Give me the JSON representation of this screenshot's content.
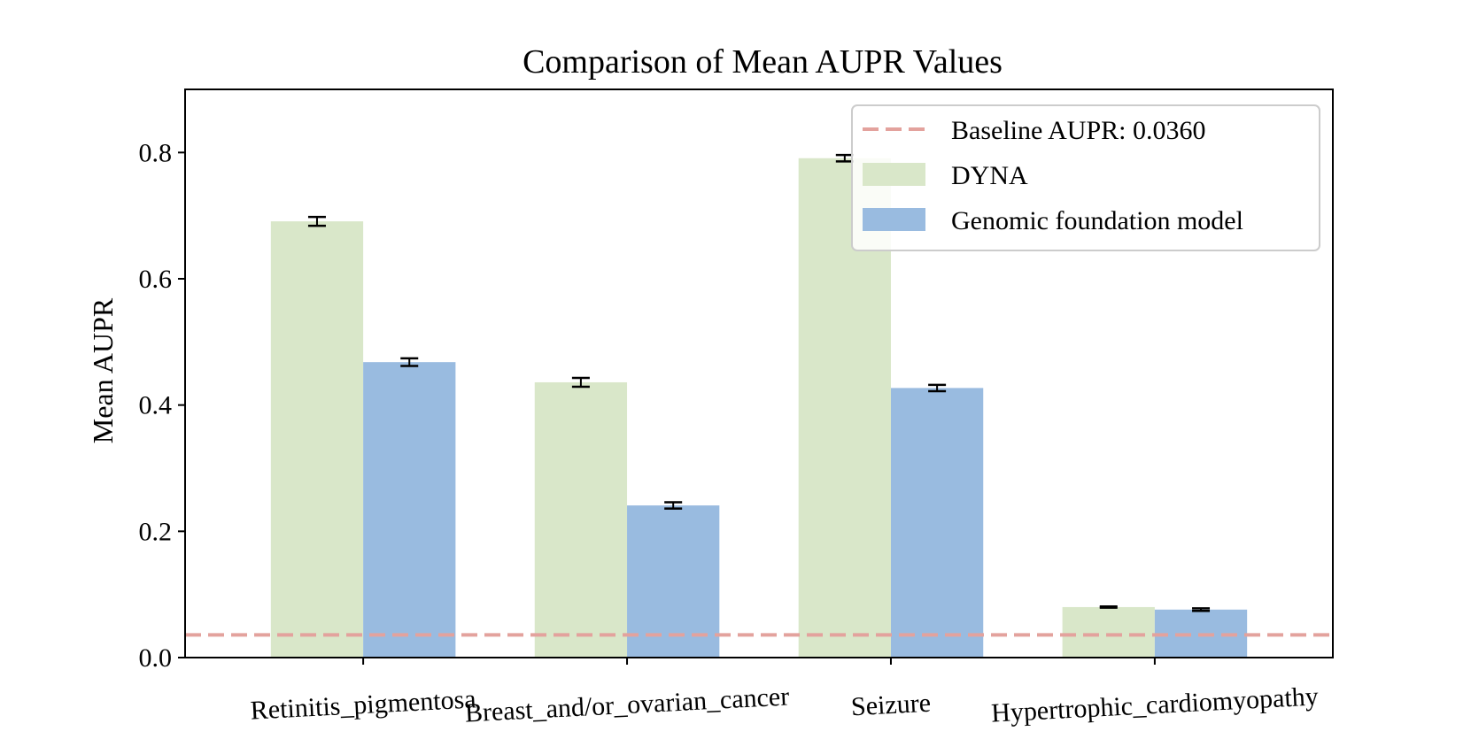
{
  "chart_data": {
    "type": "bar",
    "title": "Comparison of Mean AUPR Values",
    "xlabel": "",
    "ylabel": "Mean AUPR",
    "categories": [
      "Retinitis_pigmentosa",
      "Breast_and/or_ovarian_cancer",
      "Seizure",
      "Hypertrophic_cardiomyopathy"
    ],
    "series": [
      {
        "name": "DYNA",
        "values": [
          0.691,
          0.436,
          0.791,
          0.08
        ],
        "errors": [
          0.007,
          0.007,
          0.005,
          0.001
        ],
        "color": "#d9e7c9"
      },
      {
        "name": "Genomic foundation model",
        "values": [
          0.468,
          0.241,
          0.427,
          0.076
        ],
        "errors": [
          0.006,
          0.005,
          0.005,
          0.002
        ],
        "color": "#99bbe0"
      }
    ],
    "baseline": {
      "label": "Baseline AUPR: 0.0360",
      "value": 0.036,
      "color": "#e3a29d"
    },
    "ylim": [
      0,
      0.9
    ],
    "yticks": [
      0.0,
      0.2,
      0.4,
      0.6,
      0.8
    ],
    "ytick_labels": [
      "0.0",
      "0.2",
      "0.4",
      "0.6",
      "0.8"
    ],
    "grid": false,
    "legend_position": "top-right"
  }
}
